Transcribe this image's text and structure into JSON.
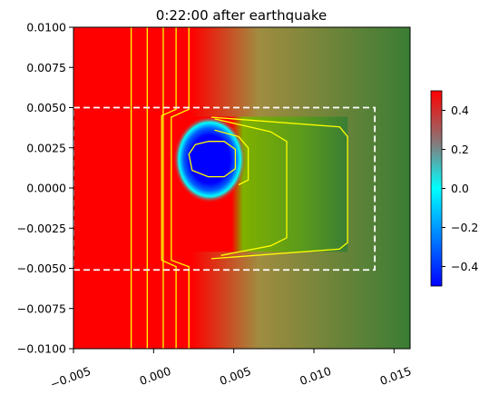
{
  "chart_data": {
    "type": "heatmap",
    "title": "0:22:00 after earthquake",
    "xlabel": "",
    "ylabel": "",
    "xlim": [
      -0.005,
      0.016
    ],
    "ylim": [
      -0.01,
      0.01
    ],
    "x_ticks": [
      -0.005,
      0.0,
      0.005,
      0.01,
      0.015
    ],
    "x_tick_labels": [
      "−0.005",
      "0.000",
      "0.005",
      "0.010",
      "0.015"
    ],
    "y_ticks": [
      0.01,
      0.0075,
      0.005,
      0.0025,
      0.0,
      -0.0025,
      -0.005,
      -0.0075,
      -0.01
    ],
    "y_tick_labels": [
      "0.0100",
      "0.0075",
      "0.0050",
      "0.0025",
      "0.0000",
      "−0.0025",
      "−0.0050",
      "−0.0075",
      "−0.0100"
    ],
    "colorbar": {
      "vmin": -0.5,
      "vmax": 0.5,
      "ticks": [
        0.4,
        0.2,
        0.0,
        -0.2,
        -0.4
      ],
      "tick_labels": [
        "0.4",
        "0.2",
        "0.0",
        "−0.2",
        "−0.4"
      ],
      "colormap": [
        "#0000ff",
        "#00ffff",
        "#808080",
        "#ff0000"
      ]
    },
    "regions": {
      "high_value_color": "#ff0000",
      "land_color": "#3a7d34",
      "transition_color": "#7fb000",
      "low_value_color": "#0000ff",
      "dry_land_x_min": 0.0022
    },
    "dashed_box": {
      "x": [
        -0.005,
        0.0138
      ],
      "y": [
        -0.0051,
        0.005
      ],
      "color": "#ffffff"
    },
    "island_center": [
      0.0035,
      0.002
    ],
    "contour_color": "#ffff00",
    "contours": [
      [
        [
          -0.0014,
          0.01
        ],
        [
          -0.0014,
          -0.01
        ]
      ],
      [
        [
          -0.0004,
          0.01
        ],
        [
          -0.0004,
          -0.01
        ]
      ],
      [
        [
          0.0006,
          0.01
        ],
        [
          0.0006,
          -0.01
        ]
      ],
      [
        [
          0.0014,
          0.01
        ],
        [
          0.0014,
          0.0049
        ],
        [
          0.0005,
          0.0045
        ],
        [
          0.0005,
          -0.0045
        ],
        [
          0.0014,
          -0.0049
        ],
        [
          0.0014,
          -0.01
        ]
      ],
      [
        [
          0.0022,
          0.01
        ],
        [
          0.0022,
          0.0049
        ],
        [
          0.0011,
          0.0044
        ],
        [
          0.0011,
          -0.0045
        ],
        [
          0.0022,
          -0.0049
        ],
        [
          0.0022,
          -0.01
        ]
      ],
      [
        [
          0.0036,
          0.0044
        ],
        [
          0.0116,
          0.0038
        ],
        [
          0.0121,
          0.0032
        ],
        [
          0.0121,
          -0.0034
        ],
        [
          0.0116,
          -0.0038
        ],
        [
          0.0036,
          -0.0044
        ]
      ],
      [
        [
          0.0038,
          0.0043
        ],
        [
          0.0073,
          0.0035
        ],
        [
          0.0083,
          0.0029
        ],
        [
          0.0083,
          -0.0031
        ],
        [
          0.0073,
          -0.0036
        ],
        [
          0.0042,
          -0.0042
        ]
      ],
      [
        [
          0.0038,
          0.0036
        ],
        [
          0.0053,
          0.0032
        ],
        [
          0.0059,
          0.0025
        ],
        [
          0.0059,
          0.0005
        ],
        [
          0.0053,
          0.0002
        ]
      ],
      [
        [
          0.0034,
          0.0029
        ],
        [
          0.0044,
          0.0029
        ],
        [
          0.0051,
          0.0024
        ],
        [
          0.0051,
          0.0012
        ],
        [
          0.0044,
          0.0007
        ],
        [
          0.0034,
          0.0007
        ],
        [
          0.0024,
          0.0011
        ],
        [
          0.0022,
          0.0021
        ],
        [
          0.0026,
          0.0027
        ],
        [
          0.0034,
          0.0029
        ]
      ]
    ]
  }
}
